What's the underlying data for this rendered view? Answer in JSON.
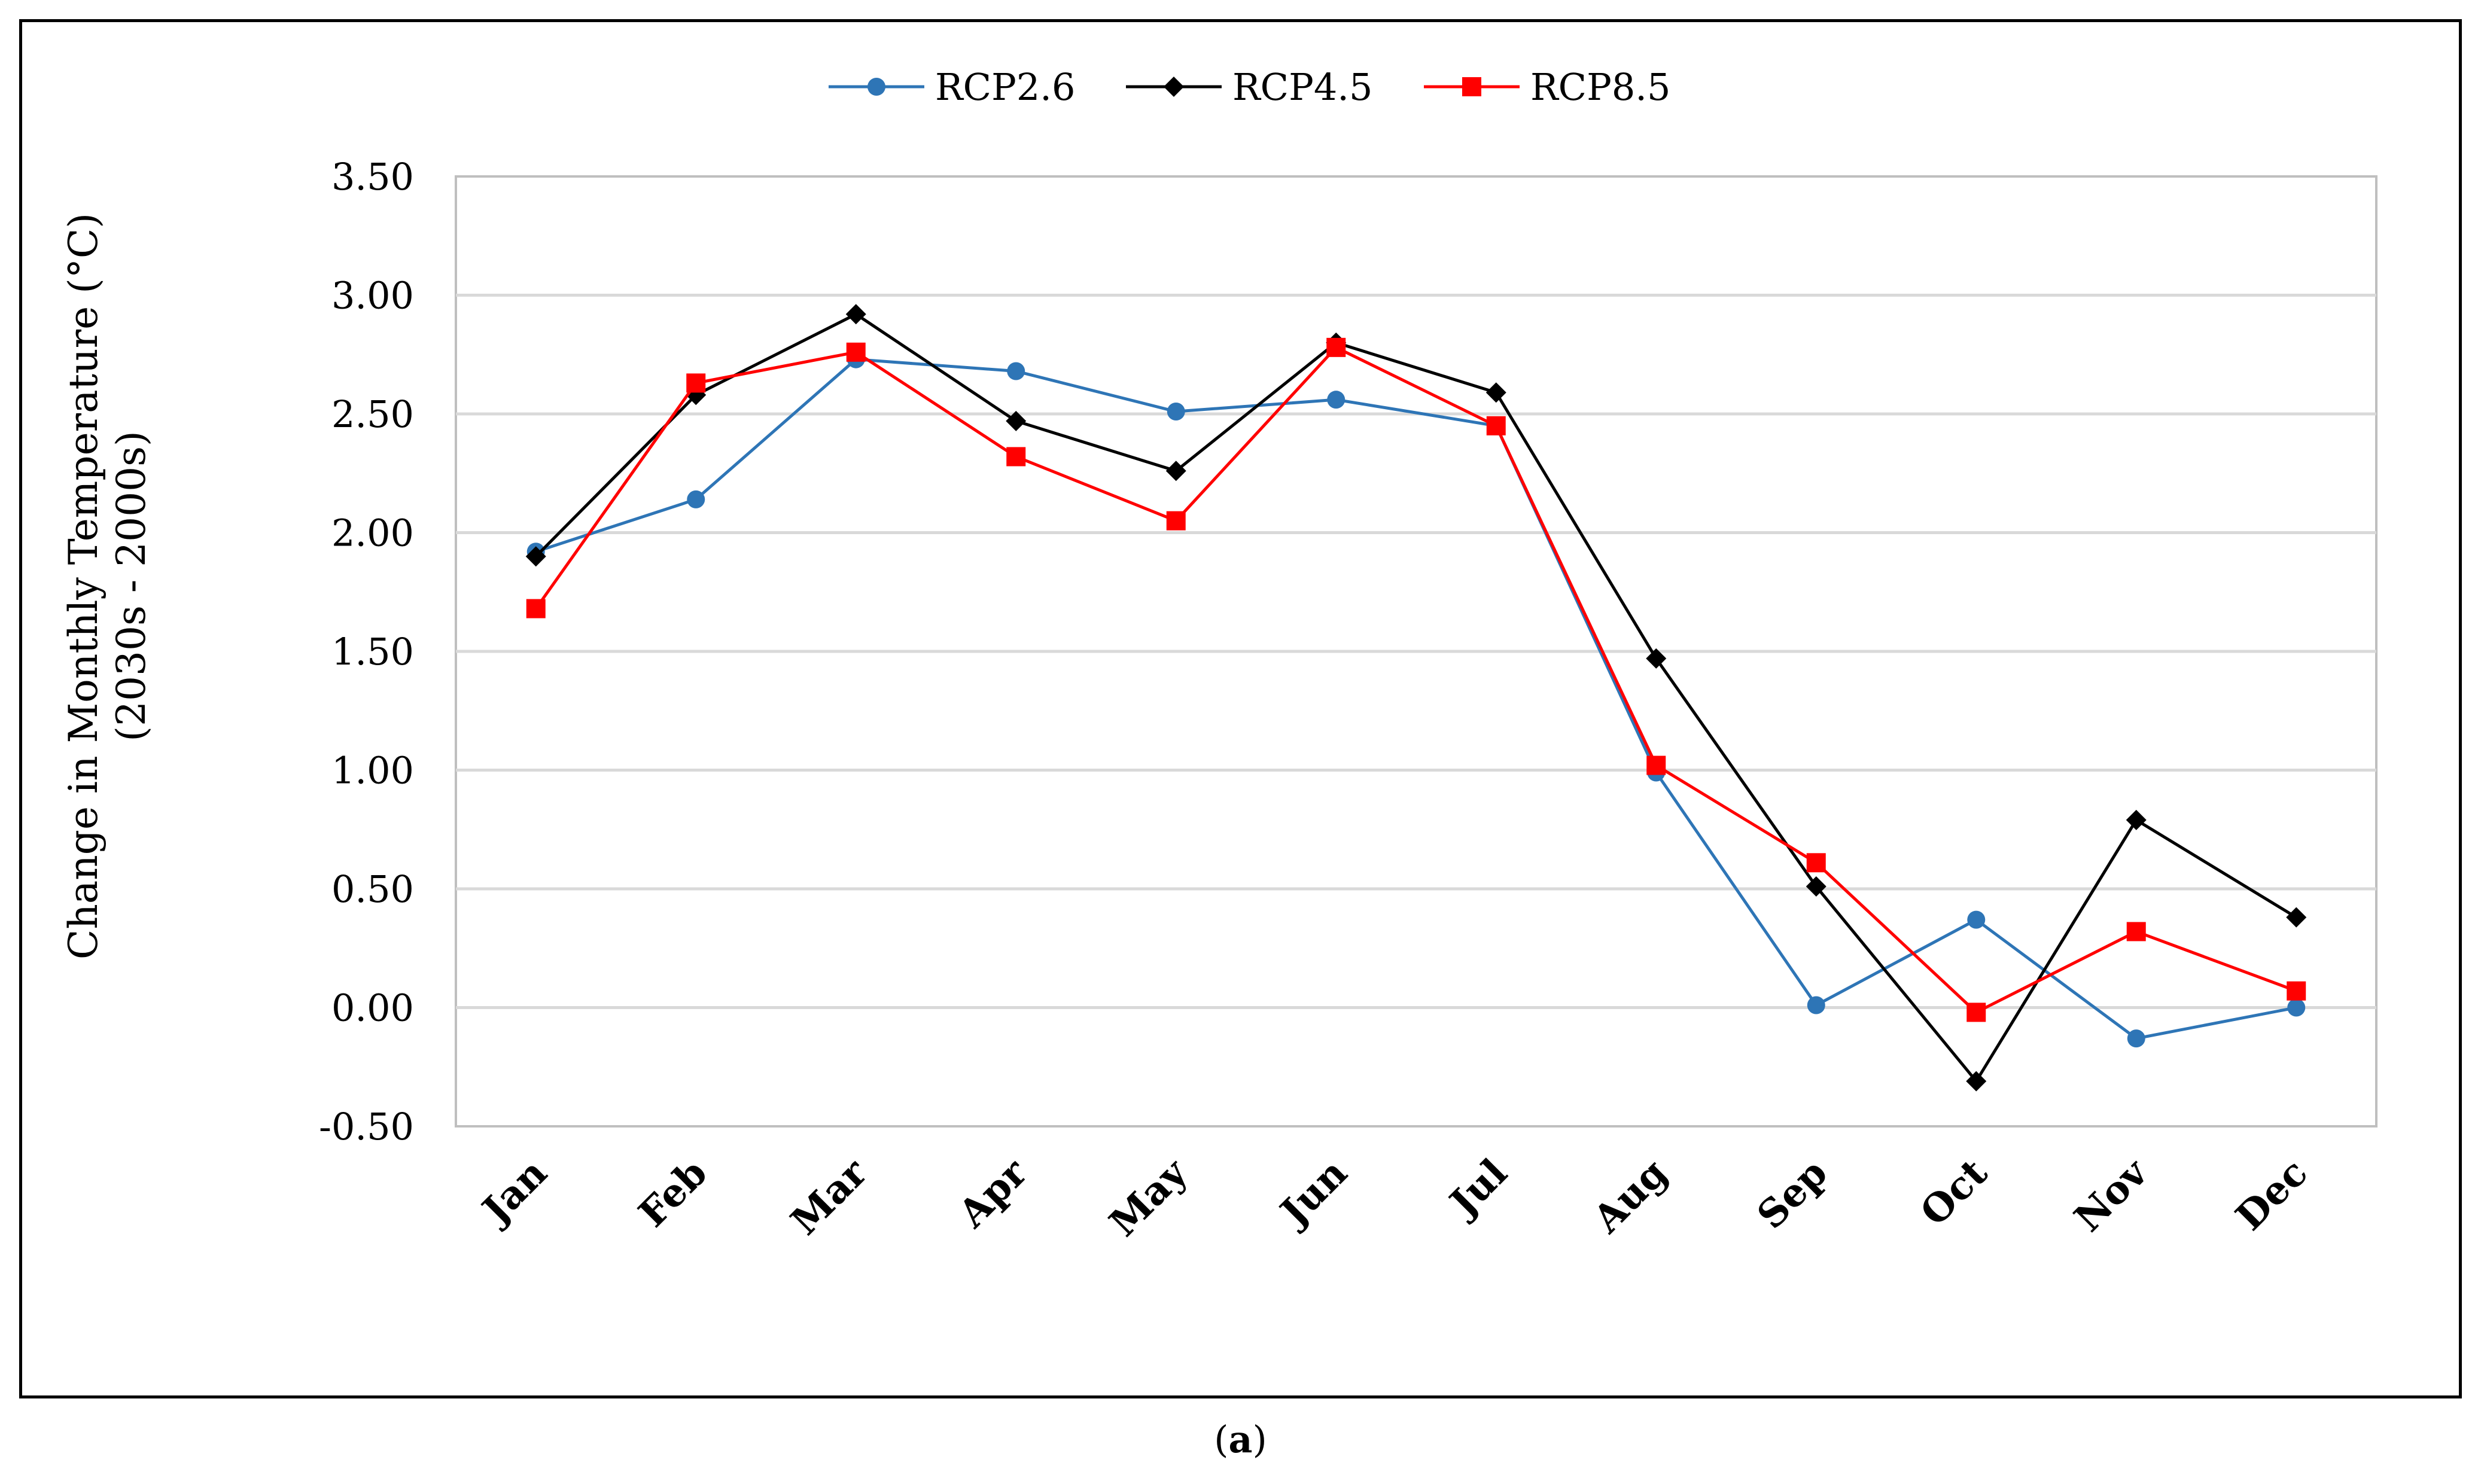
{
  "chart_data": {
    "type": "line",
    "title": "",
    "ylabel_line1": "Change in Monthly Temperature (°C)",
    "ylabel_line2": "(2030s - 2000s)",
    "xlabel": "",
    "ylim": [
      -0.5,
      3.5
    ],
    "ytick_step": 0.5,
    "ytick_labels": [
      "3.50",
      "3.00",
      "2.50",
      "2.00",
      "1.50",
      "1.00",
      "0.50",
      "0.00",
      "-0.50"
    ],
    "grid": true,
    "legend_position": "top-center",
    "categories": [
      "Jan",
      "Feb",
      "Mar",
      "Apr",
      "May",
      "Jun",
      "Jul",
      "Aug",
      "Sep",
      "Oct",
      "Nov",
      "Dec"
    ],
    "series": [
      {
        "name": "RCP2.6",
        "color": "#2E75B6",
        "marker": "circle",
        "values": [
          1.92,
          2.14,
          2.73,
          2.68,
          2.51,
          2.56,
          2.45,
          0.99,
          0.01,
          0.37,
          -0.13,
          0.0
        ]
      },
      {
        "name": "RCP4.5",
        "color": "#000000",
        "marker": "diamond",
        "values": [
          1.9,
          2.58,
          2.92,
          2.47,
          2.26,
          2.8,
          2.59,
          1.47,
          0.51,
          -0.31,
          0.79,
          0.38
        ]
      },
      {
        "name": "RCP8.5",
        "color": "#FF0000",
        "marker": "square",
        "values": [
          1.68,
          2.63,
          2.76,
          2.32,
          2.05,
          2.78,
          2.45,
          1.02,
          0.61,
          -0.02,
          0.32,
          0.07
        ]
      }
    ]
  },
  "panel_label": {
    "open": "(",
    "letter": "a",
    "close": ")"
  }
}
